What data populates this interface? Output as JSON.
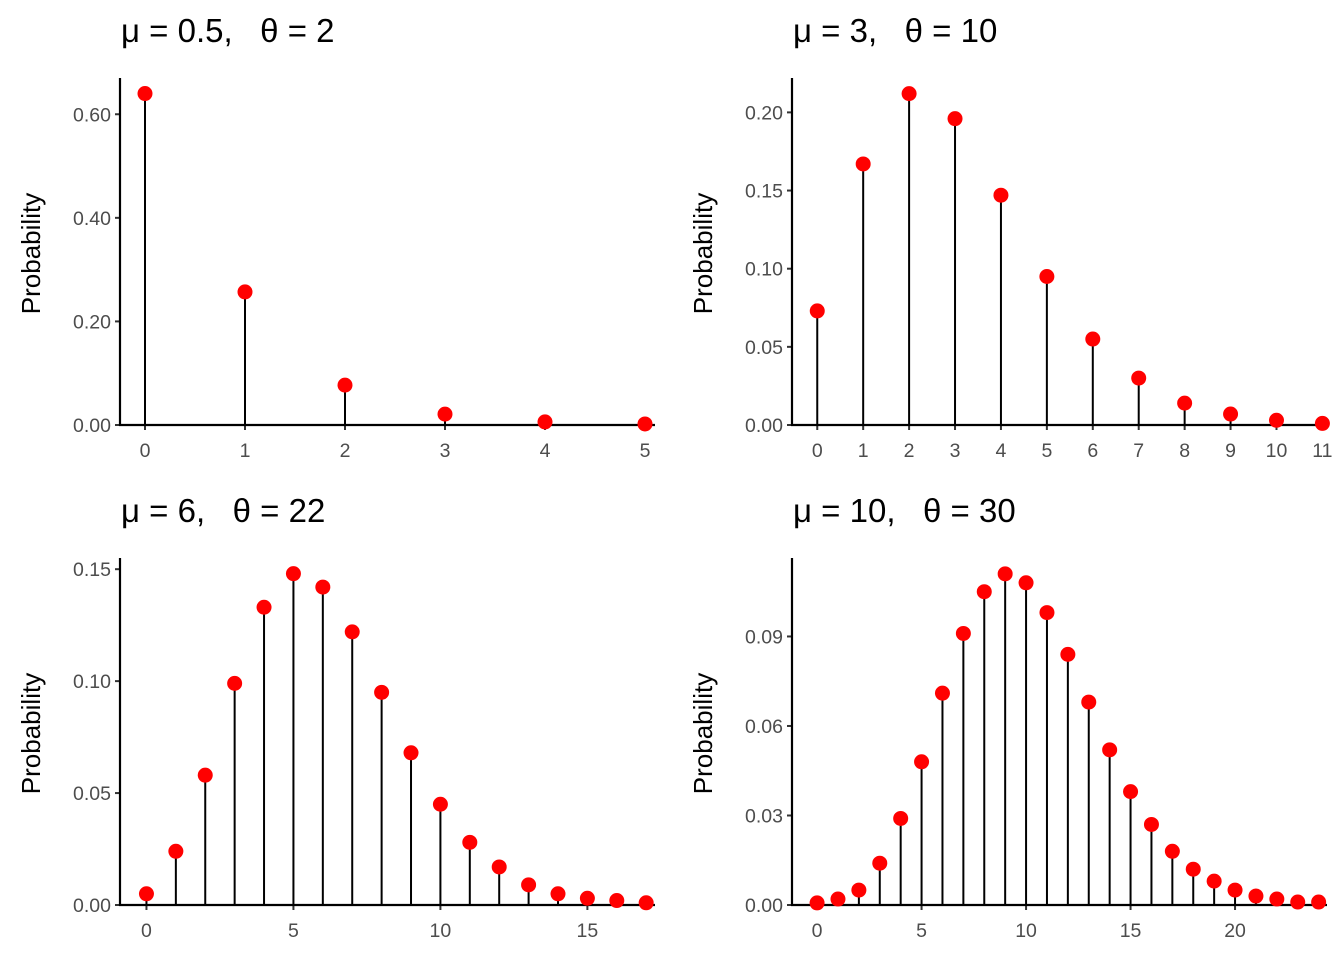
{
  "chart_data": [
    {
      "type": "lollipop",
      "title": "μ = 0.5,   θ = 2",
      "xlabel": "",
      "ylabel": "Probability",
      "x": [
        0,
        1,
        2,
        3,
        4,
        5
      ],
      "values": [
        0.64,
        0.257,
        0.077,
        0.021,
        0.006,
        0.002
      ],
      "xlim": [
        -0.25,
        5.1
      ],
      "ylim": [
        0,
        0.67
      ],
      "xticks": [
        0,
        1,
        2,
        3,
        4,
        5
      ],
      "xtick_labels": [
        "0",
        "1",
        "2",
        "3",
        "4",
        "5"
      ],
      "yticks": [
        0,
        0.2,
        0.4,
        0.6
      ],
      "ytick_labels": [
        "0.00",
        "0.20",
        "0.40",
        "0.60"
      ],
      "grid": false,
      "point_color": "#ff0000",
      "stem_color": "#000000"
    },
    {
      "type": "lollipop",
      "title": "μ = 3,   θ = 10",
      "xlabel": "",
      "ylabel": "Probability",
      "x": [
        0,
        1,
        2,
        3,
        4,
        5,
        6,
        7,
        8,
        9,
        10,
        11
      ],
      "values": [
        0.073,
        0.167,
        0.212,
        0.196,
        0.147,
        0.095,
        0.055,
        0.03,
        0.014,
        0.007,
        0.003,
        0.001
      ],
      "xlim": [
        -0.55,
        11.1
      ],
      "ylim": [
        0,
        0.222
      ],
      "xticks": [
        0,
        1,
        2,
        3,
        4,
        5,
        6,
        7,
        8,
        9,
        10,
        11
      ],
      "xtick_labels": [
        "0",
        "1",
        "2",
        "3",
        "4",
        "5",
        "6",
        "7",
        "8",
        "9",
        "10",
        "11"
      ],
      "yticks": [
        0,
        0.05,
        0.1,
        0.15,
        0.2
      ],
      "ytick_labels": [
        "0.00",
        "0.05",
        "0.10",
        "0.15",
        "0.20"
      ],
      "grid": false,
      "point_color": "#ff0000",
      "stem_color": "#000000"
    },
    {
      "type": "lollipop",
      "title": "μ = 6,   θ = 22",
      "xlabel": "",
      "ylabel": "Probability",
      "x": [
        0,
        1,
        2,
        3,
        4,
        5,
        6,
        7,
        8,
        9,
        10,
        11,
        12,
        13,
        14,
        15,
        16,
        17
      ],
      "values": [
        0.005,
        0.024,
        0.058,
        0.099,
        0.133,
        0.148,
        0.142,
        0.122,
        0.095,
        0.068,
        0.045,
        0.028,
        0.017,
        0.009,
        0.005,
        0.003,
        0.002,
        0.001
      ],
      "xlim": [
        -0.9,
        17.3
      ],
      "ylim": [
        0,
        0.155
      ],
      "xticks": [
        0,
        5,
        10,
        15
      ],
      "xtick_labels": [
        "0",
        "5",
        "10",
        "15"
      ],
      "yticks": [
        0,
        0.05,
        0.1,
        0.15
      ],
      "ytick_labels": [
        "0.00",
        "0.05",
        "0.10",
        "0.15"
      ],
      "grid": false,
      "point_color": "#ff0000",
      "stem_color": "#000000"
    },
    {
      "type": "lollipop",
      "title": "μ = 10,   θ = 30",
      "xlabel": "",
      "ylabel": "Probability",
      "x": [
        0,
        1,
        2,
        3,
        4,
        5,
        6,
        7,
        8,
        9,
        10,
        11,
        12,
        13,
        14,
        15,
        16,
        17,
        18,
        19,
        20,
        21,
        22,
        23,
        24
      ],
      "values": [
        0.0007,
        0.002,
        0.005,
        0.014,
        0.029,
        0.048,
        0.071,
        0.091,
        0.105,
        0.111,
        0.108,
        0.098,
        0.084,
        0.068,
        0.052,
        0.038,
        0.027,
        0.018,
        0.012,
        0.008,
        0.005,
        0.003,
        0.002,
        0.001,
        0.001
      ],
      "xlim": [
        -1.2,
        24.4
      ],
      "ylim": [
        0,
        0.1163
      ],
      "xticks": [
        0,
        5,
        10,
        15,
        20
      ],
      "xtick_labels": [
        "0",
        "5",
        "10",
        "15",
        "20"
      ],
      "yticks": [
        0,
        0.03,
        0.06,
        0.09
      ],
      "ytick_labels": [
        "0.00",
        "0.03",
        "0.06",
        "0.09"
      ],
      "grid": false,
      "point_color": "#ff0000",
      "stem_color": "#000000"
    }
  ]
}
